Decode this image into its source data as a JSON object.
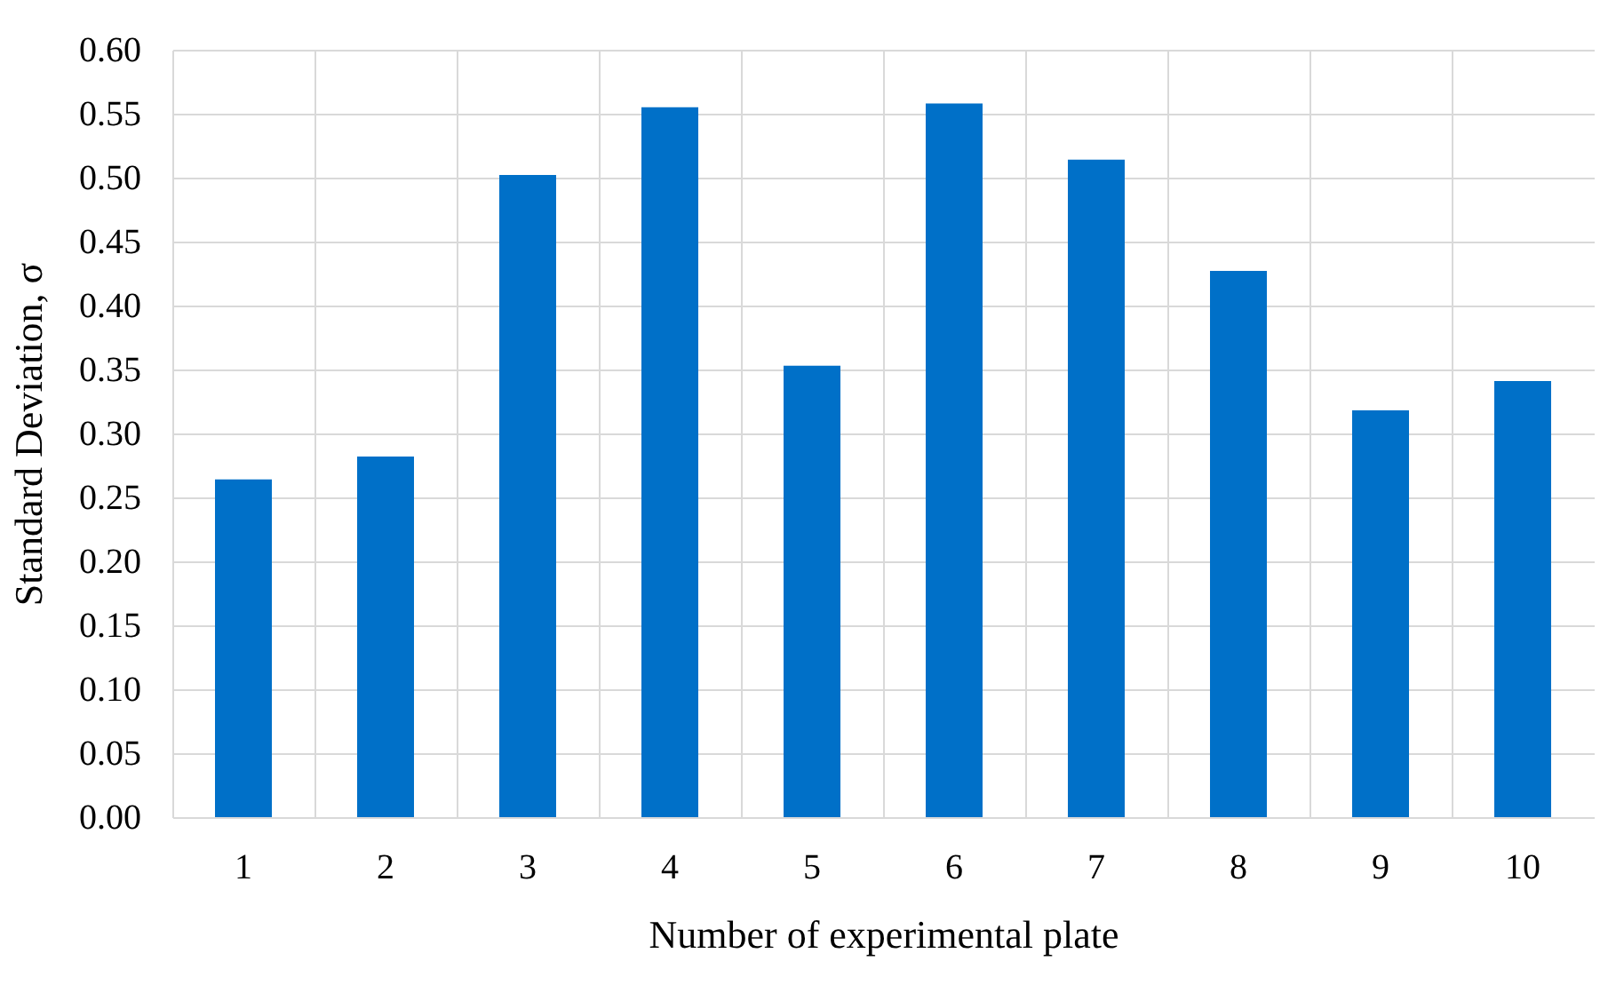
{
  "chart_data": {
    "type": "bar",
    "xlabel": "Number of experimental plate",
    "ylabel": "Standard Deviation, σ",
    "categories": [
      "1",
      "2",
      "3",
      "4",
      "5",
      "6",
      "7",
      "8",
      "9",
      "10"
    ],
    "values": [
      0.264,
      0.282,
      0.502,
      0.555,
      0.353,
      0.558,
      0.514,
      0.427,
      0.318,
      0.341
    ],
    "color": "#0070c8",
    "ylim": [
      0,
      0.6
    ],
    "yticks": [
      {
        "value": 0,
        "label": "0.00"
      },
      {
        "value": 0.05,
        "label": "0.05"
      },
      {
        "value": 0.1,
        "label": "0.10"
      },
      {
        "value": 0.15,
        "label": "0.15"
      },
      {
        "value": 0.2,
        "label": "0.20"
      },
      {
        "value": 0.25,
        "label": "0.25"
      },
      {
        "value": 0.3,
        "label": "0.30"
      },
      {
        "value": 0.35,
        "label": "0.35"
      },
      {
        "value": 0.4,
        "label": "0.40"
      },
      {
        "value": 0.45,
        "label": "0.45"
      },
      {
        "value": 0.5,
        "label": "0.50"
      },
      {
        "value": 0.55,
        "label": "0.55"
      },
      {
        "value": 0.6,
        "label": "0.60"
      }
    ],
    "grid": true
  }
}
